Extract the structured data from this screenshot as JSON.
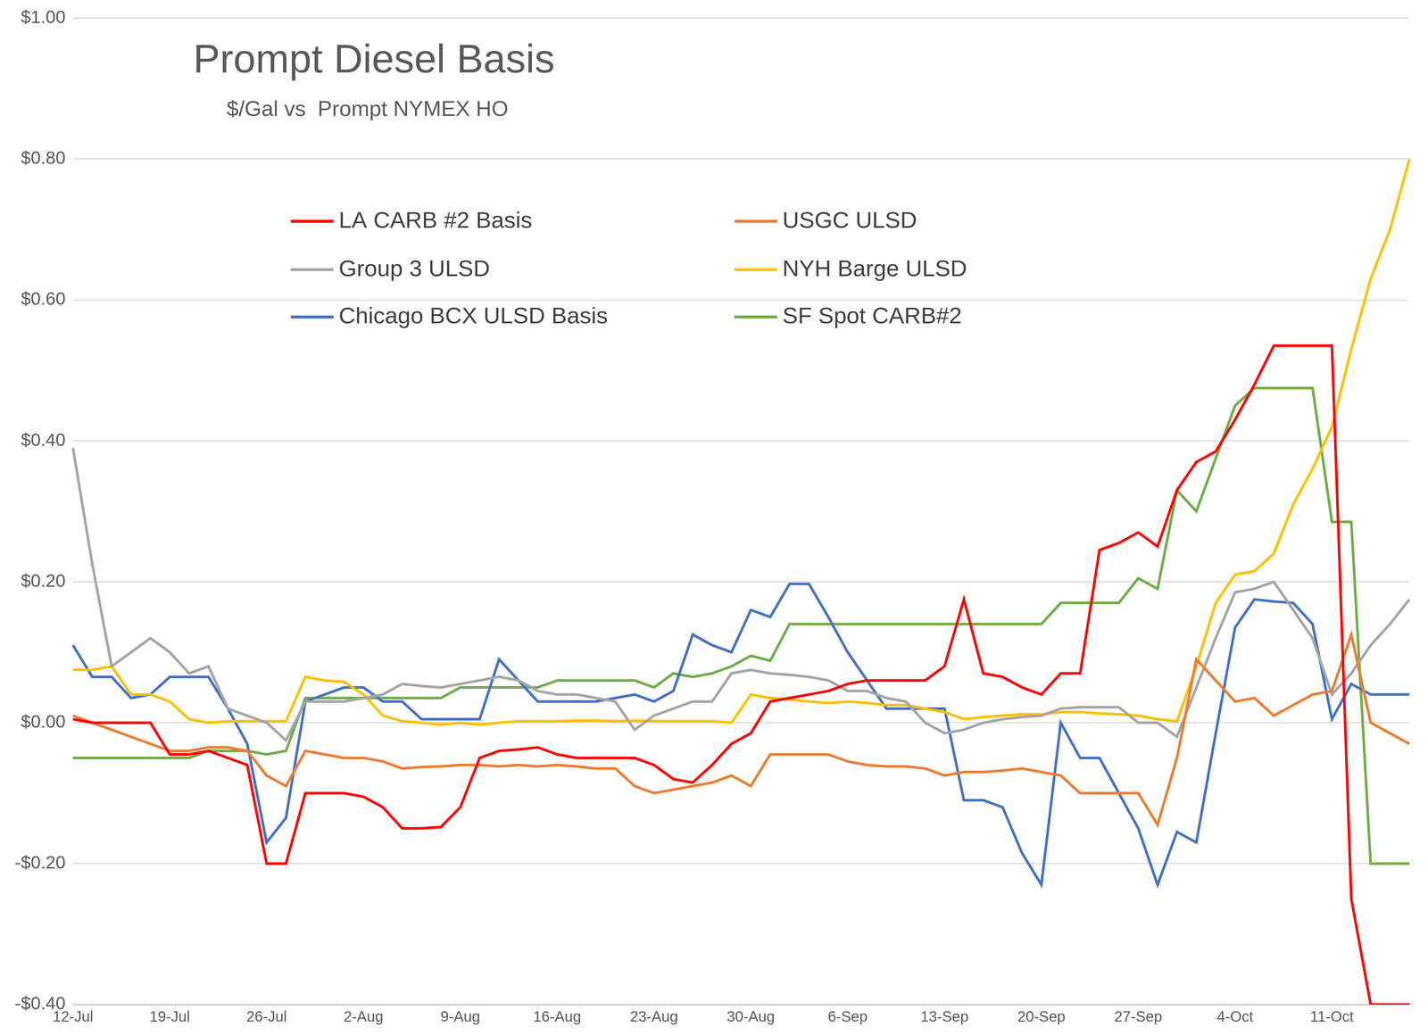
{
  "chart_data": {
    "type": "line",
    "title": "Prompt Diesel Basis",
    "subtitle": "$/Gal vs  Prompt NYMEX HO",
    "categories": [
      "12-Jul",
      null,
      null,
      null,
      null,
      "19-Jul",
      null,
      null,
      null,
      null,
      "26-Jul",
      null,
      null,
      null,
      null,
      "2-Aug",
      null,
      null,
      null,
      null,
      "9-Aug",
      null,
      null,
      null,
      null,
      "16-Aug",
      null,
      null,
      null,
      null,
      "23-Aug",
      null,
      null,
      null,
      null,
      "30-Aug",
      null,
      null,
      null,
      null,
      "6-Sep",
      null,
      null,
      null,
      null,
      "13-Sep",
      null,
      null,
      null,
      null,
      "20-Sep",
      null,
      null,
      null,
      null,
      "27-Sep",
      null,
      null,
      null,
      null,
      "4-Oct",
      null,
      null,
      null,
      null,
      "11-Oct",
      null,
      null,
      null,
      null
    ],
    "series": [
      {
        "name": "LA CARB #2 Basis",
        "color": "#ff0000",
        "values": [
          0.005,
          0,
          0,
          0,
          0,
          -0.045,
          -0.045,
          -0.04,
          -0.05,
          -0.06,
          -0.2,
          -0.2,
          -0.1,
          -0.1,
          -0.1,
          -0.105,
          -0.12,
          -0.15,
          -0.15,
          -0.148,
          -0.12,
          -0.05,
          -0.04,
          -0.038,
          -0.035,
          -0.045,
          -0.05,
          -0.05,
          -0.05,
          -0.05,
          -0.06,
          -0.08,
          -0.085,
          -0.06,
          -0.03,
          -0.015,
          0.03,
          0.035,
          0.04,
          0.045,
          0.055,
          0.06,
          0.06,
          0.06,
          0.06,
          0.08,
          0.175,
          0.07,
          0.065,
          0.05,
          0.04,
          0.07,
          0.07,
          0.245,
          0.255,
          0.27,
          0.25,
          0.33,
          0.37,
          0.385,
          0.43,
          0.48,
          0.535,
          0.535,
          0.535,
          0.535,
          -0.25,
          -0.4,
          -0.4,
          -0.4
        ]
      },
      {
        "name": "USGC ULSD",
        "color": "#ed7d31",
        "values": [
          0.01,
          0,
          -0.01,
          -0.02,
          -0.03,
          -0.04,
          -0.04,
          -0.035,
          -0.035,
          -0.04,
          -0.075,
          -0.09,
          -0.04,
          -0.045,
          -0.05,
          -0.05,
          -0.055,
          -0.065,
          -0.063,
          -0.062,
          -0.06,
          -0.06,
          -0.062,
          -0.06,
          -0.062,
          -0.06,
          -0.062,
          -0.065,
          -0.065,
          -0.09,
          -0.1,
          -0.095,
          -0.09,
          -0.085,
          -0.075,
          -0.09,
          -0.045,
          -0.045,
          -0.045,
          -0.045,
          -0.055,
          -0.06,
          -0.062,
          -0.062,
          -0.065,
          -0.075,
          -0.07,
          -0.07,
          -0.068,
          -0.065,
          -0.07,
          -0.075,
          -0.1,
          -0.1,
          -0.1,
          -0.1,
          -0.145,
          -0.05,
          0.09,
          0.06,
          0.03,
          0.035,
          0.01,
          0.025,
          0.04,
          0.045,
          0.125,
          0,
          -0.015,
          -0.03
        ]
      },
      {
        "name": "Group 3 ULSD",
        "color": "#a5a5a5",
        "values": [
          0.39,
          0.225,
          0.08,
          0.1,
          0.12,
          0.1,
          0.07,
          0.08,
          0.02,
          0.01,
          0,
          -0.025,
          0.03,
          0.03,
          0.03,
          0.035,
          0.04,
          0.055,
          0.052,
          0.05,
          0.055,
          0.06,
          0.065,
          0.06,
          0.045,
          0.04,
          0.04,
          0.035,
          0.03,
          -0.01,
          0.01,
          0.02,
          0.03,
          0.03,
          0.07,
          0.075,
          0.07,
          0.068,
          0.065,
          0.06,
          0.045,
          0.045,
          0.035,
          0.03,
          0,
          -0.015,
          -0.01,
          0,
          0.005,
          0.008,
          0.01,
          0.02,
          0.022,
          0.022,
          0.022,
          0,
          0,
          -0.02,
          0.05,
          0.12,
          0.185,
          0.19,
          0.2,
          0.16,
          0.12,
          0.04,
          0.07,
          0.11,
          0.14,
          0.175
        ]
      },
      {
        "name": "NYH Barge ULSD",
        "color": "#ffc000",
        "values": [
          0.075,
          0.075,
          0.08,
          0.04,
          0.04,
          0.03,
          0.005,
          0,
          0.002,
          0.002,
          0.002,
          0.002,
          0.065,
          0.06,
          0.058,
          0.04,
          0.01,
          0.002,
          0,
          -0.003,
          0,
          -0.003,
          0,
          0.002,
          0.002,
          0.002,
          0.003,
          0.003,
          0.002,
          0.003,
          0.002,
          0.002,
          0.002,
          0.002,
          0,
          0.04,
          0.035,
          0.033,
          0.03,
          0.028,
          0.03,
          0.028,
          0.025,
          0.025,
          0.02,
          0.015,
          0.005,
          0.008,
          0.01,
          0.012,
          0.012,
          0.015,
          0.015,
          0.013,
          0.012,
          0.01,
          0.005,
          0.002,
          0.08,
          0.17,
          0.21,
          0.215,
          0.24,
          0.31,
          0.36,
          0.42,
          0.53,
          0.63,
          0.7,
          0.8
        ]
      },
      {
        "name": "Chicago BCX ULSD Basis",
        "color": "#4472c4",
        "values": [
          0.11,
          0.065,
          0.065,
          0.035,
          0.04,
          0.065,
          0.065,
          0.065,
          0.02,
          -0.03,
          -0.17,
          -0.135,
          0.03,
          0.04,
          0.05,
          0.05,
          0.03,
          0.03,
          0.005,
          0.005,
          0.005,
          0.005,
          0.09,
          0.06,
          0.03,
          0.03,
          0.03,
          0.03,
          0.035,
          0.04,
          0.03,
          0.045,
          0.125,
          0.11,
          0.1,
          0.16,
          0.15,
          0.197,
          0.197,
          0.15,
          0.1,
          0.06,
          0.02,
          0.02,
          0.02,
          0.02,
          -0.11,
          -0.11,
          -0.12,
          -0.185,
          -0.23,
          0,
          -0.05,
          -0.05,
          -0.1,
          -0.15,
          -0.23,
          -0.155,
          -0.17,
          -0.015,
          0.135,
          0.175,
          0.172,
          0.17,
          0.14,
          0.005,
          0.055,
          0.04,
          0.04,
          0.04
        ]
      },
      {
        "name": "SF Spot CARB#2",
        "color": "#70ad47",
        "values": [
          -0.05,
          -0.05,
          -0.05,
          -0.05,
          -0.05,
          -0.05,
          -0.05,
          -0.04,
          -0.04,
          -0.04,
          -0.045,
          -0.04,
          0.035,
          0.035,
          0.035,
          0.035,
          0.035,
          0.035,
          0.035,
          0.035,
          0.05,
          0.05,
          0.05,
          0.05,
          0.05,
          0.06,
          0.06,
          0.06,
          0.06,
          0.06,
          0.05,
          0.07,
          0.065,
          0.07,
          0.08,
          0.095,
          0.088,
          0.14,
          0.14,
          0.14,
          0.14,
          0.14,
          0.14,
          0.14,
          0.14,
          0.14,
          0.14,
          0.14,
          0.14,
          0.14,
          0.14,
          0.17,
          0.17,
          0.17,
          0.17,
          0.205,
          0.19,
          0.33,
          0.3,
          0.375,
          0.45,
          0.475,
          0.475,
          0.475,
          0.475,
          0.285,
          0.285,
          -0.2,
          -0.2,
          -0.2
        ]
      }
    ],
    "ylim": [
      -0.4,
      1.0
    ],
    "yticks": [
      {
        "value": -0.4,
        "label": "-$0.40"
      },
      {
        "value": -0.2,
        "label": "-$0.20"
      },
      {
        "value": 0,
        "label": "$0.00"
      },
      {
        "value": 0.2,
        "label": "$0.20"
      },
      {
        "value": 0.4,
        "label": "$0.40"
      },
      {
        "value": 0.6,
        "label": "$0.60"
      },
      {
        "value": 0.8,
        "label": "$0.80"
      },
      {
        "value": 1.0,
        "label": "$1.00"
      }
    ],
    "grid": true,
    "legend": "upper left"
  }
}
